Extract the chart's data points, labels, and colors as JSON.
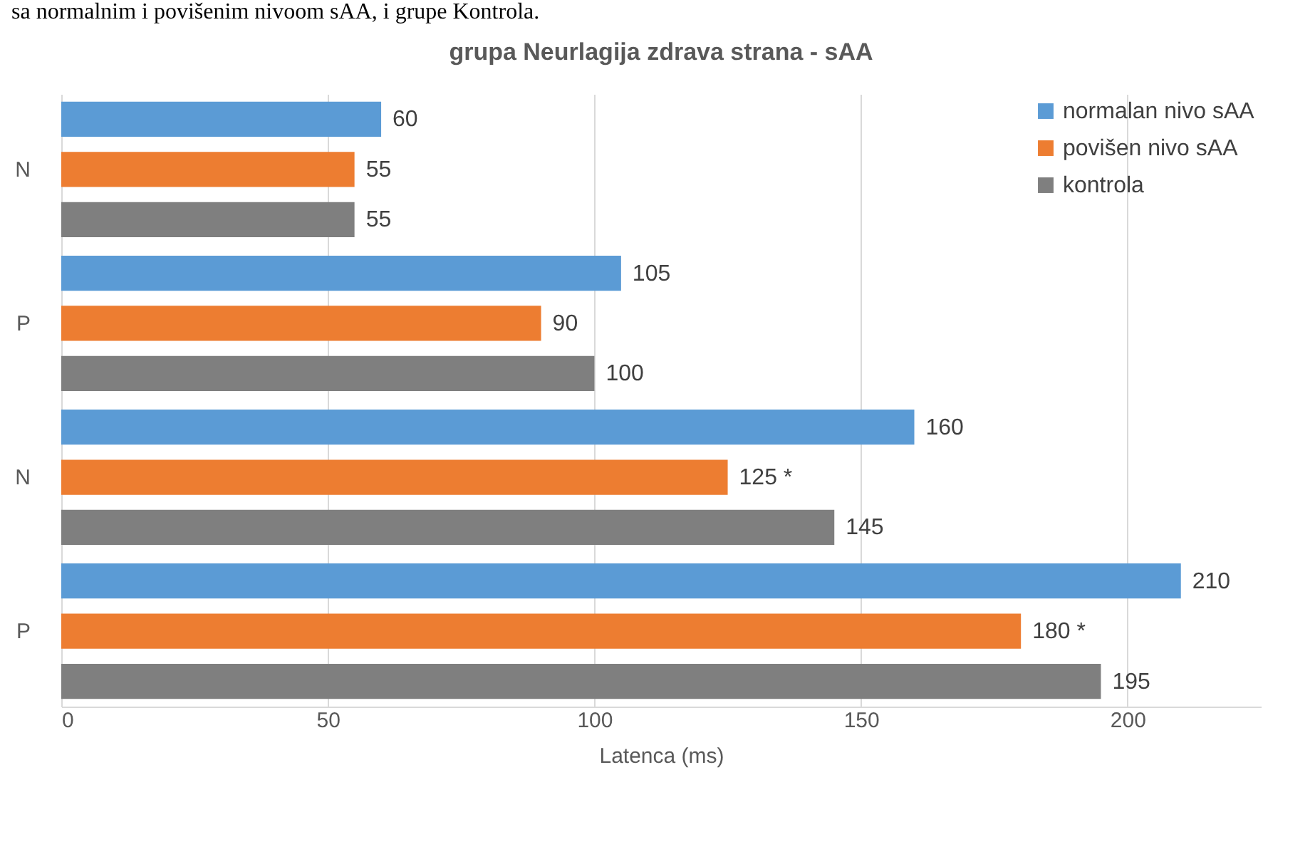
{
  "chart_data": {
    "type": "bar",
    "orientation": "horizontal",
    "title": "grupa Neurlagija zdrava strana - sAA",
    "xlabel": "Latenca (ms)",
    "categories": [
      "N",
      "P",
      "N",
      "P"
    ],
    "series": [
      {
        "name": "normalan nivo sAA",
        "color": "#5b9bd5",
        "values": [
          60,
          105,
          160,
          210
        ]
      },
      {
        "name": "povišen nivo sAA",
        "color": "#ed7d31",
        "values": [
          55,
          90,
          125,
          180
        ],
        "value_labels": [
          "55",
          "90",
          "125 *",
          "180 *"
        ]
      },
      {
        "name": "kontrola",
        "color": "#7f7f7f",
        "values": [
          55,
          100,
          145,
          195
        ]
      }
    ],
    "xlim": [
      0,
      225
    ],
    "xticks": [
      0,
      50,
      100,
      150,
      200
    ],
    "grid": "x",
    "legend": "top right",
    "data_labels": true,
    "annotations": [
      "sa normalnim i povišenim nivoom sAA, i grupe Kontrola."
    ]
  }
}
